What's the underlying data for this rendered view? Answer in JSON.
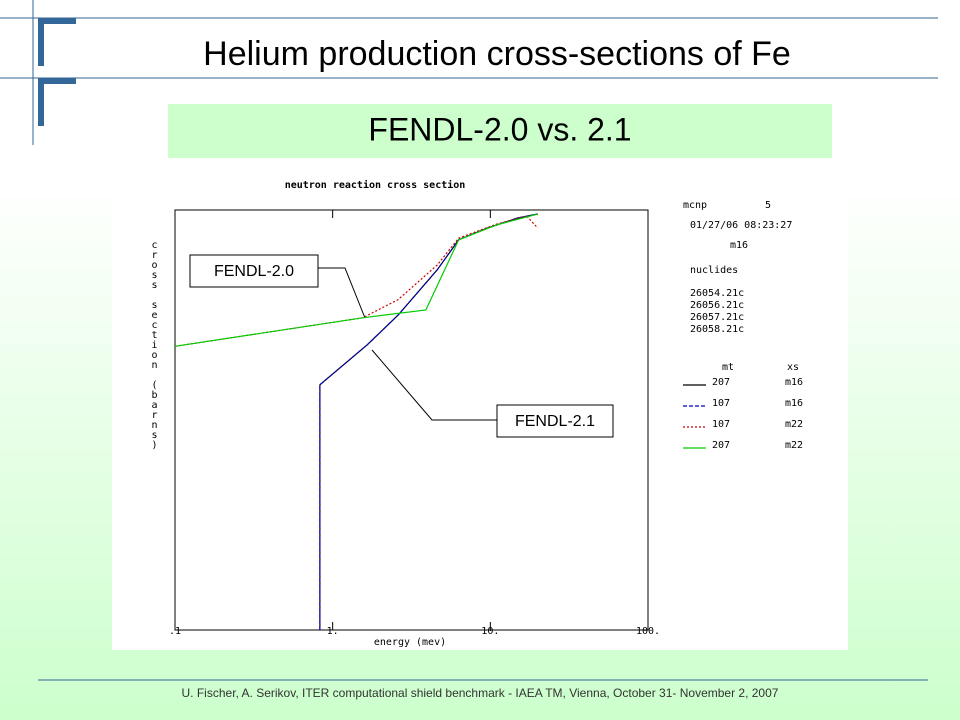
{
  "title": "Helium production cross-sections of Fe",
  "subtitle": "FENDL-2.0 vs. 2.1",
  "footer": "U. Fischer, A. Serikov, ITER computational shield benchmark      -      IAEA TM, Vienna, October 31- November 2, 2007",
  "chart_data": {
    "type": "line",
    "title": "neutron reaction cross section",
    "x_label": "energy (mev)",
    "y_label": "cross section (barns)",
    "xscale": "log",
    "yscale": "log",
    "xlim": [
      0.1,
      100
    ],
    "ylim": [
      1e-09,
      1
    ],
    "xticks": [
      {
        "value": 0.1,
        "label": ".1"
      },
      {
        "value": 1,
        "label": "1."
      },
      {
        "value": 10,
        "label": "10."
      },
      {
        "value": 100,
        "label": "100."
      }
    ],
    "code": "mcnp",
    "code_version": "5",
    "timestamp": "01/27/06 08:23:27",
    "material": "m16",
    "nuclides_label": "nuclides",
    "nuclides": [
      "26054.21c",
      "26056.21c",
      "26057.21c",
      "26058.21c"
    ],
    "legend_mt_header": "mt",
    "legend_xs_header": "xs",
    "annotations": [
      "FENDL-2.0",
      "FENDL-2.1"
    ],
    "series": [
      {
        "mt": "207",
        "xs": "m16",
        "color": "#000000",
        "dash": "none",
        "x": [
          0.83,
          0.83,
          1.66,
          2.6,
          4.6,
          6.3,
          9.6,
          14.8,
          20
        ],
        "values": [
          1e-09,
          0.00018,
          0.0013,
          0.0056,
          0.052,
          0.23,
          0.41,
          0.67,
          0.82
        ]
      },
      {
        "mt": "107",
        "xs": "m16",
        "color": "#0000cc",
        "dash": "4,2",
        "x": [
          0.83,
          0.83,
          1.66,
          2.6,
          4.6,
          6.3,
          9.6,
          14.8,
          20
        ],
        "values": [
          1e-09,
          0.00018,
          0.0013,
          0.0056,
          0.052,
          0.23,
          0.41,
          0.67,
          0.82
        ]
      },
      {
        "mt": "107",
        "xs": "m22",
        "color": "#cc0000",
        "dash": "2,2",
        "x": [
          0.1,
          1.55,
          2.6,
          4.6,
          6.3,
          11,
          17,
          20
        ],
        "values": [
          0.0012,
          0.0049,
          0.012,
          0.066,
          0.25,
          0.5,
          0.74,
          0.41
        ]
      },
      {
        "mt": "207",
        "xs": "m22",
        "color": "#00cc00",
        "dash": "none",
        "x": [
          0.1,
          1.55,
          3.9,
          6.3,
          11,
          20
        ],
        "values": [
          0.0012,
          0.0049,
          0.0072,
          0.23,
          0.48,
          0.82
        ]
      }
    ]
  }
}
